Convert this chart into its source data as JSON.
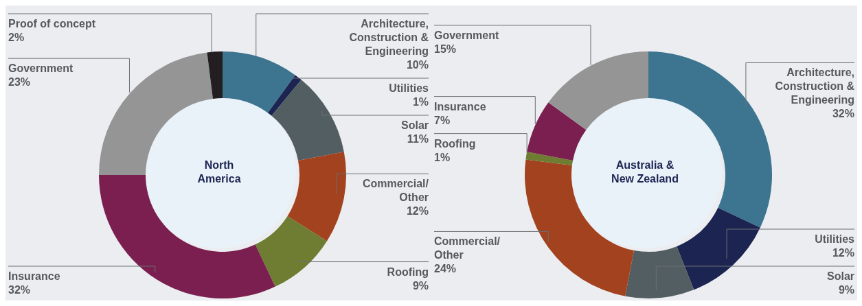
{
  "chart_data": [
    {
      "type": "donut",
      "title": "North America",
      "categories": [
        "Architecture, Construction & Engineering",
        "Utilities",
        "Solar",
        "Commercial/ Other",
        "Roofing",
        "Insurance",
        "Government",
        "Proof of concept"
      ],
      "values": [
        10,
        1,
        11,
        12,
        9,
        32,
        23,
        2
      ],
      "value_labels": [
        "10%",
        "1%",
        "11%",
        "12%",
        "9%",
        "32%",
        "23%",
        "2%"
      ],
      "colors": [
        "#3d7590",
        "#1c2551",
        "#535e63",
        "#a3421f",
        "#6e7d32",
        "#7a1f4f",
        "#959595",
        "#231f20"
      ]
    },
    {
      "type": "donut",
      "title": "Australia & New Zealand",
      "categories": [
        "Architecture, Construction & Engineering",
        "Utilities",
        "Solar",
        "Commercial/ Other",
        "Roofing",
        "Insurance",
        "Government"
      ],
      "values": [
        32,
        12,
        9,
        24,
        1,
        7,
        15
      ],
      "value_labels": [
        "32%",
        "12%",
        "9%",
        "24%",
        "1%",
        "7%",
        "15%"
      ],
      "colors": [
        "#3d7590",
        "#1c2551",
        "#535e63",
        "#a3421f",
        "#6e7d32",
        "#7a1f4f",
        "#959595"
      ]
    }
  ]
}
